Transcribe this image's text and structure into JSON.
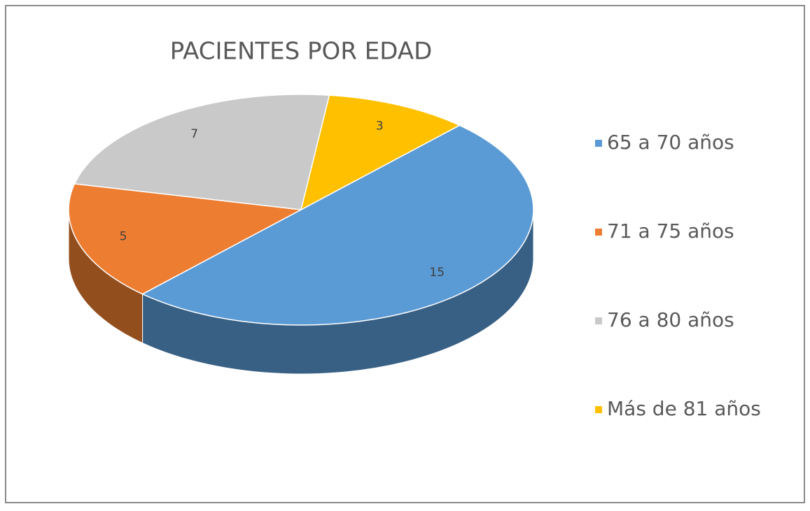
{
  "chart_data": {
    "type": "pie",
    "title": "PACIENTES POR EDAD",
    "categories": [
      "65 a 70 años",
      "71 a 75 años",
      "76 a 80 años",
      "Más de 81 años"
    ],
    "values": [
      15,
      5,
      7,
      3
    ],
    "colors": [
      "#5b9bd5",
      "#ed7d31",
      "#c9c9c9",
      "#ffc000"
    ],
    "legend": "right"
  }
}
